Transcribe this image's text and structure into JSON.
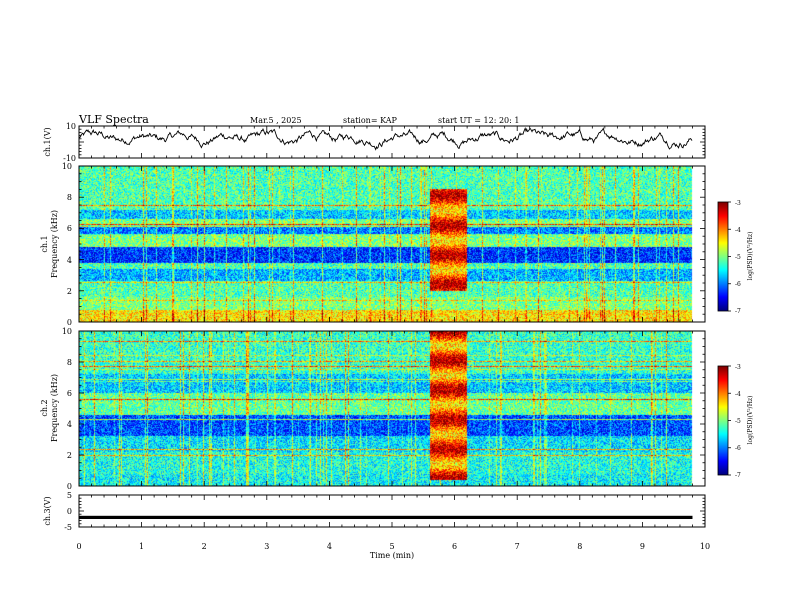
{
  "header": {
    "title": "VLF Spectra",
    "date": "Mar.5 , 2025",
    "station": "station= KAP",
    "start": "start UT = 12: 20: 1"
  },
  "chart_data": [
    {
      "type": "line",
      "panel": "ch1-waveform",
      "ylabel": "ch.1(V)",
      "ylim": [
        -10,
        10
      ],
      "y_tick_labels": [
        "10",
        "-10"
      ],
      "xlim": [
        0,
        10
      ],
      "series": [
        {
          "name": "ch.1",
          "description": "noisy waveform, mostly between -5 and 9 V",
          "x_range": [
            0,
            9.8
          ]
        }
      ]
    },
    {
      "type": "heatmap",
      "panel": "ch1-spectrogram",
      "ylabel_top": "ch.1",
      "ylabel": "Frequency (kHz)",
      "ylim": [
        0,
        10
      ],
      "y_tick_labels": [
        "0",
        "2",
        "4",
        "6",
        "8",
        "10"
      ],
      "xlim": [
        0,
        10
      ],
      "data_x_range": [
        0,
        9.8
      ],
      "colorbar": {
        "label": "log(PSD)(V²/Hz)",
        "range": [
          -7,
          -3
        ],
        "tick_labels": [
          "-3",
          "-4",
          "-5",
          "-6",
          "-7"
        ]
      },
      "bands": [
        {
          "f": [
            0,
            0.8
          ],
          "level": -4.4
        },
        {
          "f": [
            0.8,
            1.6
          ],
          "level": -5.0
        },
        {
          "f": [
            1.6,
            2.6
          ],
          "level": -5.2
        },
        {
          "f": [
            2.6,
            3.4
          ],
          "level": -5.8
        },
        {
          "f": [
            3.4,
            3.8
          ],
          "level": -5.2
        },
        {
          "f": [
            3.8,
            4.8
          ],
          "level": -6.3
        },
        {
          "f": [
            4.8,
            5.6
          ],
          "level": -5.0
        },
        {
          "f": [
            5.6,
            6.2
          ],
          "level": -6.0
        },
        {
          "f": [
            6.2,
            6.6
          ],
          "level": -5.0
        },
        {
          "f": [
            6.6,
            7.2
          ],
          "level": -5.7
        },
        {
          "f": [
            7.2,
            10
          ],
          "level": -5.2
        }
      ],
      "burst": {
        "t": [
          5.6,
          6.2
        ],
        "f": [
          2.0,
          8.5
        ],
        "level": -3.8
      }
    },
    {
      "type": "heatmap",
      "panel": "ch2-spectrogram",
      "ylabel_top": "ch.2",
      "ylabel": "Frequency (kHz)",
      "ylim": [
        0,
        10
      ],
      "y_tick_labels": [
        "0",
        "2",
        "4",
        "6",
        "8",
        "10"
      ],
      "xlim": [
        0,
        10
      ],
      "data_x_range": [
        0,
        9.8
      ],
      "colorbar": {
        "label": "log(PSD)(V²/Hz)",
        "range": [
          -7,
          -3
        ],
        "tick_labels": [
          "-3",
          "-4",
          "-5",
          "-6",
          "-7"
        ]
      },
      "bands": [
        {
          "f": [
            0,
            0.8
          ],
          "level": -5.5
        },
        {
          "f": [
            0.8,
            2.2
          ],
          "level": -5.4
        },
        {
          "f": [
            2.2,
            3.2
          ],
          "level": -5.6
        },
        {
          "f": [
            3.2,
            4.6
          ],
          "level": -6.2
        },
        {
          "f": [
            4.6,
            6.0
          ],
          "level": -5.1
        },
        {
          "f": [
            6.0,
            7.2
          ],
          "level": -5.7
        },
        {
          "f": [
            7.2,
            10
          ],
          "level": -5.3
        }
      ],
      "burst": {
        "t": [
          5.6,
          6.2
        ],
        "f": [
          0.4,
          10
        ],
        "level": -3.8
      }
    },
    {
      "type": "line",
      "panel": "ch3-waveform",
      "ylabel": "ch.3(V)",
      "ylim": [
        -5,
        5
      ],
      "y_tick_labels": [
        "5",
        "0",
        "-5"
      ],
      "xlim": [
        0,
        10
      ],
      "xlabel": "Time (min)",
      "x_tick_labels": [
        "0",
        "1",
        "2",
        "3",
        "4",
        "5",
        "6",
        "7",
        "8",
        "9",
        "10"
      ],
      "series": [
        {
          "name": "ch.3",
          "description": "flat dense band near -2 V",
          "y_band": [
            -2.5,
            -1.5
          ],
          "x_range": [
            0,
            9.8
          ]
        }
      ]
    }
  ]
}
